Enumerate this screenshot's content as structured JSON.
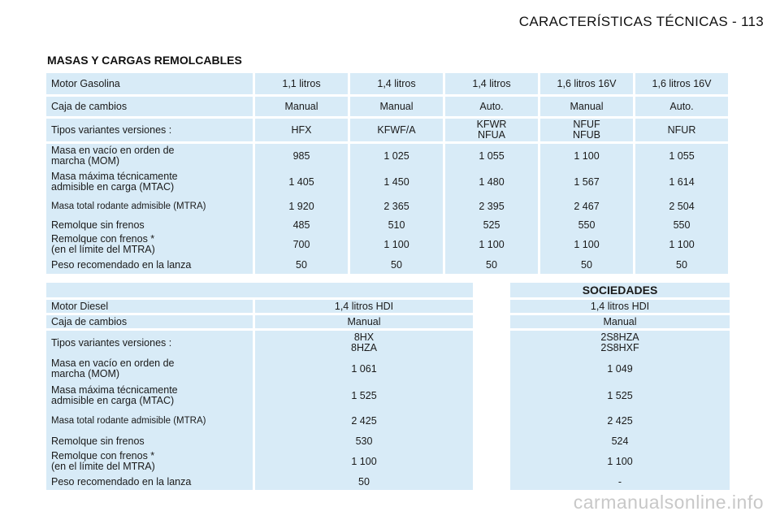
{
  "header": {
    "page_title": "CARACTERÍSTICAS TÉCNICAS - 113"
  },
  "section_title": "MASAS Y CARGAS REMOLCABLES",
  "petrol": {
    "motor_label": "Motor Gasolina",
    "engines": [
      "1,1 litros",
      "1,4 litros",
      "1,4 litros",
      "1,6 litros 16V",
      "1,6 litros 16V"
    ],
    "gearbox_label": "Caja de cambios",
    "gearboxes": [
      "Manual",
      "Manual",
      "Auto.",
      "Manual",
      "Auto."
    ],
    "variants_label": "Tipos variantes versiones :",
    "variants_line1": [
      "HFX",
      "KFWF/A",
      "KFWR",
      "NFUF",
      "NFUR"
    ],
    "variants_line2": [
      "",
      "",
      "NFUA",
      "NFUB",
      ""
    ],
    "rows": [
      {
        "label1": "Masa en vacío en orden de",
        "label2": "marcha (MOM)",
        "values": [
          "985",
          "1 025",
          "1 055",
          "1 100",
          "1 055"
        ]
      },
      {
        "label1": "Masa máxima técnicamente",
        "label2": "admisible en carga (MTAC)",
        "values": [
          "1 405",
          "1 450",
          "1 480",
          "1 567",
          "1 614"
        ]
      },
      {
        "label1": "Masa total rodante admisible (MTRA)",
        "label2": "",
        "values": [
          "1 920",
          "2 365",
          "2 395",
          "2 467",
          "2 504"
        ]
      },
      {
        "label1": "Remolque sin frenos",
        "label2": "",
        "values": [
          "485",
          "510",
          "525",
          "550",
          "550"
        ]
      },
      {
        "label1": "Remolque con frenos *",
        "label2": "(en el límite del MTRA)",
        "values": [
          "700",
          "1 100",
          "1 100",
          "1 100",
          "1 100"
        ]
      },
      {
        "label1": "Peso recomendado en la lanza",
        "label2": "",
        "values": [
          "50",
          "50",
          "50",
          "50",
          "50"
        ]
      }
    ]
  },
  "diesel": {
    "sociedades_label": "SOCIEDADES",
    "motor_label": "Motor Diesel",
    "engines": [
      "1,4 litros HDI",
      "1,4 litros HDI"
    ],
    "gearbox_label": "Caja de cambios",
    "gearboxes": [
      "Manual",
      "Manual"
    ],
    "variants_label": "Tipos variantes versiones :",
    "variants_line1": [
      "8HX",
      "2S8HZA"
    ],
    "variants_line2": [
      "8HZA",
      "2S8HXF"
    ],
    "rows": [
      {
        "label1": "Masa en vacío en orden de",
        "label2": "marcha (MOM)",
        "values": [
          "1 061",
          "1 049"
        ]
      },
      {
        "label1": "Masa máxima técnicamente",
        "label2": "admisible en carga (MTAC)",
        "values": [
          "1 525",
          "1 525"
        ]
      },
      {
        "label1": "Masa total rodante admisible (MTRA)",
        "label2": "",
        "values": [
          "2 425",
          "2 425"
        ]
      },
      {
        "label1": "Remolque sin frenos",
        "label2": "",
        "values": [
          "530",
          "524"
        ]
      },
      {
        "label1": "Remolque con frenos *",
        "label2": "(en el límite del MTRA)",
        "values": [
          "1 100",
          "1 100"
        ]
      },
      {
        "label1": "Peso recomendado en la lanza",
        "label2": "",
        "values": [
          "50",
          "-"
        ]
      }
    ]
  },
  "watermark": "carmanualsonline.info"
}
